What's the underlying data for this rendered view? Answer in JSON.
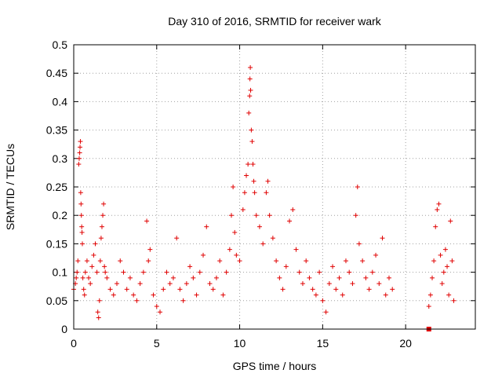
{
  "chart_data": {
    "type": "scatter",
    "title": "Day 310 of 2016, SRMTID for receiver wark",
    "xlabel": "GPS time / hours",
    "ylabel": "SRMTID / TECUs",
    "xlim": [
      0,
      24.2
    ],
    "ylim": [
      0,
      0.5
    ],
    "xticks": [
      0,
      5,
      10,
      15,
      20
    ],
    "xtick_labels": [
      "0",
      "5",
      "10",
      "15",
      "20"
    ],
    "yticks": [
      0,
      0.05,
      0.1,
      0.15,
      0.2,
      0.25,
      0.3,
      0.35,
      0.4,
      0.45,
      0.5
    ],
    "ytick_labels": [
      "0",
      "0.05",
      "0.1",
      "0.15",
      "0.2",
      "0.25",
      "0.3",
      "0.35",
      "0.4",
      "0.45",
      "0.5"
    ],
    "grid": true,
    "marker": "+",
    "color": "#e00000",
    "series": [
      {
        "name": "SRMTID",
        "points": [
          [
            0.0,
            0.07
          ],
          [
            0.1,
            0.08
          ],
          [
            0.15,
            0.09
          ],
          [
            0.2,
            0.1
          ],
          [
            0.25,
            0.12
          ],
          [
            0.3,
            0.29
          ],
          [
            0.33,
            0.3
          ],
          [
            0.36,
            0.31
          ],
          [
            0.38,
            0.32
          ],
          [
            0.4,
            0.33
          ],
          [
            0.42,
            0.24
          ],
          [
            0.44,
            0.22
          ],
          [
            0.46,
            0.2
          ],
          [
            0.48,
            0.18
          ],
          [
            0.5,
            0.17
          ],
          [
            0.52,
            0.15
          ],
          [
            0.55,
            0.09
          ],
          [
            0.6,
            0.07
          ],
          [
            0.65,
            0.06
          ],
          [
            0.7,
            0.1
          ],
          [
            0.8,
            0.12
          ],
          [
            0.9,
            0.09
          ],
          [
            1.0,
            0.08
          ],
          [
            1.1,
            0.11
          ],
          [
            1.2,
            0.13
          ],
          [
            1.3,
            0.15
          ],
          [
            1.4,
            0.1
          ],
          [
            1.45,
            0.03
          ],
          [
            1.5,
            0.02
          ],
          [
            1.55,
            0.05
          ],
          [
            1.6,
            0.12
          ],
          [
            1.65,
            0.16
          ],
          [
            1.7,
            0.18
          ],
          [
            1.75,
            0.2
          ],
          [
            1.8,
            0.22
          ],
          [
            1.85,
            0.11
          ],
          [
            1.9,
            0.1
          ],
          [
            2.0,
            0.09
          ],
          [
            2.2,
            0.07
          ],
          [
            2.4,
            0.06
          ],
          [
            2.6,
            0.08
          ],
          [
            2.8,
            0.12
          ],
          [
            3.0,
            0.1
          ],
          [
            3.2,
            0.07
          ],
          [
            3.4,
            0.09
          ],
          [
            3.6,
            0.06
          ],
          [
            3.8,
            0.05
          ],
          [
            4.0,
            0.08
          ],
          [
            4.2,
            0.1
          ],
          [
            4.4,
            0.19
          ],
          [
            4.5,
            0.12
          ],
          [
            4.6,
            0.14
          ],
          [
            4.8,
            0.06
          ],
          [
            5.0,
            0.04
          ],
          [
            5.2,
            0.03
          ],
          [
            5.4,
            0.07
          ],
          [
            5.6,
            0.1
          ],
          [
            5.8,
            0.08
          ],
          [
            6.0,
            0.09
          ],
          [
            6.2,
            0.16
          ],
          [
            6.4,
            0.07
          ],
          [
            6.6,
            0.05
          ],
          [
            6.8,
            0.08
          ],
          [
            7.0,
            0.11
          ],
          [
            7.2,
            0.09
          ],
          [
            7.4,
            0.06
          ],
          [
            7.6,
            0.1
          ],
          [
            7.8,
            0.13
          ],
          [
            8.0,
            0.18
          ],
          [
            8.2,
            0.08
          ],
          [
            8.4,
            0.07
          ],
          [
            8.6,
            0.09
          ],
          [
            8.8,
            0.12
          ],
          [
            9.0,
            0.06
          ],
          [
            9.2,
            0.1
          ],
          [
            9.4,
            0.14
          ],
          [
            9.5,
            0.2
          ],
          [
            9.6,
            0.25
          ],
          [
            9.7,
            0.17
          ],
          [
            9.8,
            0.13
          ],
          [
            10.0,
            0.12
          ],
          [
            10.2,
            0.21
          ],
          [
            10.3,
            0.24
          ],
          [
            10.4,
            0.27
          ],
          [
            10.5,
            0.29
          ],
          [
            10.55,
            0.38
          ],
          [
            10.6,
            0.41
          ],
          [
            10.62,
            0.44
          ],
          [
            10.64,
            0.46
          ],
          [
            10.66,
            0.42
          ],
          [
            10.7,
            0.35
          ],
          [
            10.75,
            0.33
          ],
          [
            10.8,
            0.29
          ],
          [
            10.85,
            0.26
          ],
          [
            10.9,
            0.24
          ],
          [
            11.0,
            0.2
          ],
          [
            11.2,
            0.18
          ],
          [
            11.4,
            0.15
          ],
          [
            11.6,
            0.24
          ],
          [
            11.7,
            0.26
          ],
          [
            11.8,
            0.2
          ],
          [
            12.0,
            0.16
          ],
          [
            12.2,
            0.12
          ],
          [
            12.4,
            0.09
          ],
          [
            12.6,
            0.07
          ],
          [
            12.8,
            0.11
          ],
          [
            13.0,
            0.19
          ],
          [
            13.2,
            0.21
          ],
          [
            13.4,
            0.14
          ],
          [
            13.6,
            0.1
          ],
          [
            13.8,
            0.08
          ],
          [
            14.0,
            0.12
          ],
          [
            14.2,
            0.09
          ],
          [
            14.4,
            0.07
          ],
          [
            14.6,
            0.06
          ],
          [
            14.8,
            0.1
          ],
          [
            15.0,
            0.05
          ],
          [
            15.2,
            0.03
          ],
          [
            15.4,
            0.08
          ],
          [
            15.6,
            0.11
          ],
          [
            15.8,
            0.07
          ],
          [
            16.0,
            0.09
          ],
          [
            16.2,
            0.06
          ],
          [
            16.4,
            0.12
          ],
          [
            16.6,
            0.1
          ],
          [
            16.8,
            0.08
          ],
          [
            17.0,
            0.2
          ],
          [
            17.1,
            0.25
          ],
          [
            17.2,
            0.15
          ],
          [
            17.4,
            0.12
          ],
          [
            17.6,
            0.09
          ],
          [
            17.8,
            0.07
          ],
          [
            18.0,
            0.1
          ],
          [
            18.2,
            0.13
          ],
          [
            18.4,
            0.08
          ],
          [
            18.6,
            0.16
          ],
          [
            18.8,
            0.06
          ],
          [
            19.0,
            0.09
          ],
          [
            19.2,
            0.07
          ],
          [
            21.4,
            0.04
          ],
          [
            21.5,
            0.06
          ],
          [
            21.6,
            0.09
          ],
          [
            21.7,
            0.12
          ],
          [
            21.8,
            0.18
          ],
          [
            21.9,
            0.21
          ],
          [
            22.0,
            0.22
          ],
          [
            22.1,
            0.13
          ],
          [
            22.2,
            0.08
          ],
          [
            22.3,
            0.1
          ],
          [
            22.4,
            0.14
          ],
          [
            22.5,
            0.11
          ],
          [
            22.6,
            0.06
          ],
          [
            22.7,
            0.19
          ],
          [
            22.8,
            0.12
          ],
          [
            22.9,
            0.05
          ]
        ]
      }
    ],
    "outlier_points": [
      [
        21.4,
        0.0
      ]
    ]
  }
}
